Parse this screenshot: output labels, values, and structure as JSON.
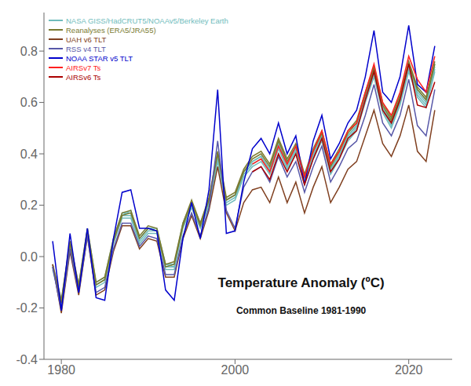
{
  "chart_data": {
    "type": "line",
    "title": "Temperature Anomaly (ºC)",
    "subtitle": "Common Baseline 1981-1990",
    "x": [
      1979,
      1980,
      1981,
      1982,
      1983,
      1984,
      1985,
      1986,
      1987,
      1988,
      1989,
      1990,
      1991,
      1992,
      1993,
      1994,
      1995,
      1996,
      1997,
      1998,
      1999,
      2000,
      2001,
      2002,
      2003,
      2004,
      2005,
      2006,
      2007,
      2008,
      2009,
      2010,
      2011,
      2012,
      2013,
      2014,
      2015,
      2016,
      2017,
      2018,
      2019,
      2020,
      2021,
      2022,
      2023
    ],
    "series": [
      {
        "name": "NASA GISS/HadCRUT5/NOAAv5/Berkeley Earth",
        "color": "#70bcbc",
        "values": [
          -0.04,
          -0.18,
          0.04,
          -0.12,
          0.1,
          -0.11,
          -0.09,
          0.06,
          0.16,
          0.16,
          0.06,
          0.1,
          0.1,
          -0.04,
          -0.04,
          0.12,
          0.2,
          0.12,
          0.21,
          0.38,
          0.21,
          0.23,
          0.32,
          0.36,
          0.38,
          0.33,
          0.43,
          0.35,
          0.41,
          0.29,
          0.39,
          0.46,
          0.33,
          0.39,
          0.46,
          0.5,
          0.61,
          0.71,
          0.57,
          0.51,
          0.6,
          0.73,
          0.63,
          0.59,
          0.73
        ]
      },
      {
        "name": "NASA GISS/HadCRUT5/NOAAv5/Berkeley Earth",
        "color": "#70bcbc",
        "values": [
          -0.05,
          -0.19,
          0.03,
          -0.13,
          0.09,
          -0.12,
          -0.1,
          0.05,
          0.15,
          0.15,
          0.05,
          0.09,
          0.09,
          -0.05,
          -0.05,
          0.11,
          0.19,
          0.11,
          0.2,
          0.37,
          0.2,
          0.22,
          0.31,
          0.35,
          0.37,
          0.32,
          0.42,
          0.34,
          0.4,
          0.28,
          0.38,
          0.45,
          0.32,
          0.38,
          0.45,
          0.49,
          0.6,
          0.7,
          0.56,
          0.5,
          0.59,
          0.72,
          0.62,
          0.58,
          0.72
        ]
      },
      {
        "name": "NASA GISS/HadCRUT5/NOAAv5/Berkeley Earth",
        "color": "#70bcbc",
        "values": [
          -0.03,
          -0.17,
          0.05,
          -0.11,
          0.11,
          -0.1,
          -0.08,
          0.07,
          0.17,
          0.17,
          0.07,
          0.11,
          0.11,
          -0.03,
          -0.03,
          0.13,
          0.21,
          0.13,
          0.22,
          0.39,
          0.22,
          0.24,
          0.33,
          0.37,
          0.39,
          0.34,
          0.44,
          0.36,
          0.42,
          0.3,
          0.4,
          0.47,
          0.34,
          0.4,
          0.47,
          0.51,
          0.62,
          0.72,
          0.58,
          0.52,
          0.61,
          0.74,
          0.64,
          0.6,
          0.74
        ]
      },
      {
        "name": "NASA GISS/HadCRUT5/NOAAv5/Berkeley Earth",
        "color": "#70bcbc",
        "values": [
          -0.04,
          -0.18,
          0.04,
          -0.12,
          0.1,
          -0.11,
          -0.09,
          0.06,
          0.16,
          0.18,
          0.07,
          0.11,
          0.1,
          -0.03,
          -0.04,
          0.13,
          0.21,
          0.12,
          0.22,
          0.4,
          0.22,
          0.24,
          0.33,
          0.37,
          0.39,
          0.34,
          0.44,
          0.36,
          0.42,
          0.3,
          0.4,
          0.47,
          0.34,
          0.4,
          0.47,
          0.51,
          0.62,
          0.73,
          0.58,
          0.53,
          0.61,
          0.75,
          0.65,
          0.61,
          0.75
        ]
      },
      {
        "name": "Reanalyses (ERA5/JRA55)",
        "color": "#7a7a30",
        "values": [
          -0.04,
          -0.18,
          0.05,
          -0.12,
          0.1,
          -0.11,
          -0.09,
          0.06,
          0.16,
          0.17,
          0.07,
          0.11,
          0.1,
          -0.04,
          -0.03,
          0.12,
          0.21,
          0.12,
          0.22,
          0.4,
          0.22,
          0.24,
          0.33,
          0.38,
          0.4,
          0.35,
          0.45,
          0.37,
          0.43,
          0.31,
          0.41,
          0.48,
          0.35,
          0.41,
          0.48,
          0.52,
          0.63,
          0.73,
          0.59,
          0.53,
          0.62,
          0.75,
          0.65,
          0.61,
          0.75
        ]
      },
      {
        "name": "Reanalyses (ERA5/JRA55)",
        "color": "#7a7a30",
        "values": [
          -0.03,
          -0.17,
          0.06,
          -0.11,
          0.11,
          -0.1,
          -0.08,
          0.07,
          0.17,
          0.18,
          0.08,
          0.12,
          0.11,
          -0.03,
          -0.02,
          0.13,
          0.22,
          0.13,
          0.23,
          0.41,
          0.23,
          0.25,
          0.34,
          0.39,
          0.41,
          0.36,
          0.46,
          0.38,
          0.44,
          0.32,
          0.42,
          0.49,
          0.36,
          0.42,
          0.49,
          0.53,
          0.64,
          0.74,
          0.6,
          0.54,
          0.63,
          0.76,
          0.66,
          0.62,
          0.76
        ]
      },
      {
        "name": "UAH v6 TLT",
        "color": "#804020",
        "values": [
          -0.03,
          -0.22,
          0.02,
          -0.15,
          0.08,
          -0.15,
          -0.13,
          0.02,
          0.12,
          0.12,
          0.03,
          0.07,
          0.06,
          -0.08,
          -0.08,
          0.07,
          0.16,
          0.07,
          0.18,
          0.35,
          0.17,
          0.1,
          0.21,
          0.26,
          0.27,
          0.21,
          0.31,
          0.21,
          0.29,
          0.17,
          0.27,
          0.35,
          0.21,
          0.27,
          0.34,
          0.37,
          0.47,
          0.57,
          0.44,
          0.39,
          0.47,
          0.59,
          0.41,
          0.37,
          0.57
        ]
      },
      {
        "name": "RSS v4 TLT",
        "color": "#5858a8",
        "values": [
          -0.04,
          -0.21,
          0.03,
          -0.14,
          0.08,
          -0.14,
          -0.12,
          0.03,
          0.13,
          0.13,
          0.04,
          0.08,
          0.07,
          -0.07,
          -0.07,
          0.08,
          0.17,
          0.08,
          0.19,
          0.45,
          0.18,
          0.11,
          0.27,
          0.33,
          0.35,
          0.29,
          0.39,
          0.31,
          0.37,
          0.25,
          0.35,
          0.43,
          0.29,
          0.35,
          0.42,
          0.45,
          0.55,
          0.67,
          0.52,
          0.47,
          0.55,
          0.69,
          0.51,
          0.47,
          0.65
        ]
      },
      {
        "name": "NOAA STAR v5 TLT",
        "color": "#0000cc",
        "values": [
          0.06,
          -0.21,
          0.09,
          -0.14,
          0.11,
          -0.16,
          -0.17,
          0.07,
          0.25,
          0.26,
          0.11,
          0.11,
          0.1,
          -0.13,
          -0.17,
          0.07,
          0.21,
          0.07,
          0.26,
          0.65,
          0.09,
          0.1,
          0.29,
          0.42,
          0.46,
          0.4,
          0.52,
          0.4,
          0.47,
          0.28,
          0.45,
          0.55,
          0.38,
          0.44,
          0.52,
          0.57,
          0.7,
          0.88,
          0.64,
          0.6,
          0.7,
          0.9,
          0.67,
          0.64,
          0.82
        ]
      },
      {
        "name": "AIRSv7 Ts",
        "color": "#ff2020",
        "values": [
          null,
          null,
          null,
          null,
          null,
          null,
          null,
          null,
          null,
          null,
          null,
          null,
          null,
          null,
          null,
          null,
          null,
          null,
          null,
          null,
          null,
          null,
          null,
          0.36,
          0.38,
          0.33,
          0.43,
          0.36,
          0.43,
          0.31,
          0.41,
          0.49,
          0.36,
          0.41,
          0.49,
          0.52,
          0.64,
          0.75,
          0.6,
          0.55,
          0.64,
          0.78,
          0.69,
          0.64,
          0.78
        ]
      },
      {
        "name": "AIRSv6 Ts",
        "color": "#aa0000",
        "values": [
          null,
          null,
          null,
          null,
          null,
          null,
          null,
          null,
          null,
          null,
          null,
          null,
          null,
          null,
          null,
          null,
          null,
          null,
          null,
          null,
          null,
          null,
          null,
          0.33,
          0.35,
          0.3,
          0.4,
          0.33,
          0.4,
          0.28,
          0.38,
          0.46,
          0.33,
          0.38,
          0.46,
          0.49,
          0.61,
          0.72,
          0.57,
          0.52,
          0.61,
          0.75,
          0.59,
          0.58,
          0.68
        ]
      }
    ],
    "xlim": [
      1978,
      2025
    ],
    "ylim": [
      -0.4,
      0.95
    ],
    "xticks": [
      1980,
      2000,
      2020
    ],
    "yticks": [
      -0.4,
      -0.2,
      {
        "value": 0,
        "label": "0.0"
      },
      0.2,
      0.4,
      0.6,
      0.8
    ],
    "grid": false,
    "legend": "upper left"
  }
}
